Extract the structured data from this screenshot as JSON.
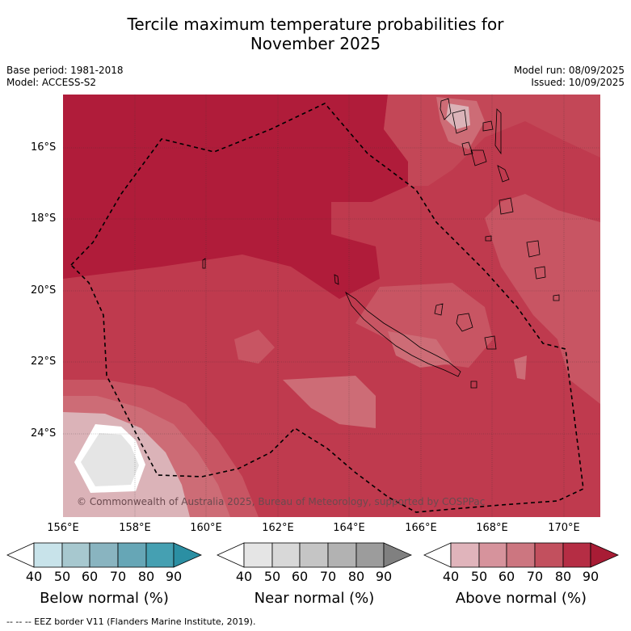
{
  "title_line1": "Tercile maximum temperature probabilities for",
  "title_line2": "November 2025",
  "base_period": "Base period: 1981-2018",
  "model": "Model: ACCESS-S2",
  "model_run": "Model run: 08/09/2025",
  "issued": "Issued: 10/09/2025",
  "lat_labels": [
    "16°S",
    "18°S",
    "20°S",
    "22°S",
    "24°S"
  ],
  "lon_labels": [
    "156°E",
    "158°E",
    "160°E",
    "162°E",
    "164°E",
    "166°E",
    "168°E",
    "170°E"
  ],
  "copyright": "© Commonwealth of Australia 2025, Bureau of Meteorology, supported by COSPPac",
  "footnote": "--  --  -- EEZ border V11 (Flanders Marine Institute, 2019).",
  "colorbars": [
    {
      "title": "Below normal (%)",
      "ticks": [
        "40",
        "50",
        "60",
        "70",
        "80",
        "90"
      ],
      "colors": [
        "#ffffff",
        "#c8e3ea",
        "#a7c8cf",
        "#89b4c0",
        "#66a6b6",
        "#45a0b2",
        "#2b8fa3"
      ]
    },
    {
      "title": "Near normal (%)",
      "ticks": [
        "40",
        "50",
        "60",
        "70",
        "80",
        "90"
      ],
      "colors": [
        "#ffffff",
        "#e5e5e5",
        "#d8d8d8",
        "#c5c5c5",
        "#b2b2b2",
        "#9c9c9c",
        "#808080"
      ]
    },
    {
      "title": "Above normal (%)",
      "ticks": [
        "40",
        "50",
        "60",
        "70",
        "80",
        "90"
      ],
      "colors": [
        "#ffffff",
        "#e0b4bb",
        "#d6939c",
        "#cc7680",
        "#c2505e",
        "#b52d44",
        "#a81c35"
      ]
    }
  ],
  "map_colors": {
    "above_80": "#b01c3a",
    "above_70": "#bf3a4e",
    "above_60": "#c85563",
    "above_50": "#cd6c76",
    "above_40": "#dbb3b8",
    "near_40": "#e5e5e5",
    "land_outline": "#000000"
  }
}
